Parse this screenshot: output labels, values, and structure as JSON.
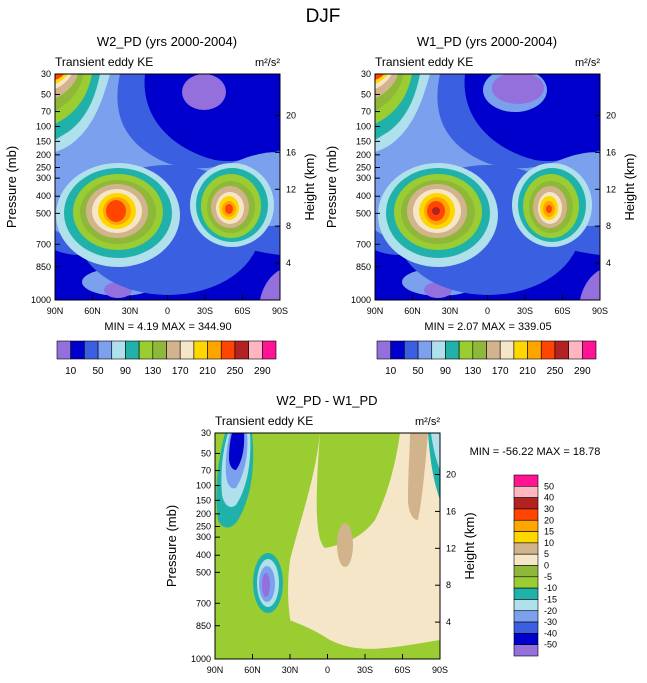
{
  "figure": {
    "title": "DJF"
  },
  "chart_data": [
    {
      "type": "heatmap",
      "title": "W2_PD (yrs 2000-2004)",
      "left_label": "Transient eddy KE",
      "units": "m²/s²",
      "ylabel": "Pressure (mb)",
      "ylabel_right": "Height (km)",
      "xticks": [
        "90N",
        "60N",
        "30N",
        "0",
        "30S",
        "60S",
        "90S"
      ],
      "yticks": [
        "30",
        "50",
        "70",
        "100",
        "150",
        "200",
        "250",
        "300",
        "400",
        "500",
        "700",
        "850",
        "1000"
      ],
      "height_ticks": [
        "20",
        "16",
        "12",
        "8",
        "4"
      ],
      "stats": "MIN =  4.19  MAX = 344.90",
      "min": 4.19,
      "max": 344.9,
      "levels": [
        10,
        30,
        50,
        70,
        90,
        110,
        130,
        150,
        170,
        190,
        210,
        230,
        250,
        270,
        290
      ],
      "colorbar_labels": [
        "10",
        "50",
        "90",
        "130",
        "170",
        "210",
        "250",
        "290"
      ],
      "colorbar_orientation": "horizontal"
    },
    {
      "type": "heatmap",
      "title": "W1_PD (yrs 2000-2004)",
      "left_label": "Transient eddy KE",
      "units": "m²/s²",
      "ylabel": "Pressure (mb)",
      "ylabel_right": "Height (km)",
      "xticks": [
        "90N",
        "60N",
        "30N",
        "0",
        "30S",
        "60S",
        "90S"
      ],
      "yticks": [
        "30",
        "50",
        "70",
        "100",
        "150",
        "200",
        "250",
        "300",
        "400",
        "500",
        "700",
        "850",
        "1000"
      ],
      "height_ticks": [
        "20",
        "16",
        "12",
        "8",
        "4"
      ],
      "stats": "MIN =  2.07  MAX = 339.05",
      "min": 2.07,
      "max": 339.05,
      "levels": [
        10,
        30,
        50,
        70,
        90,
        110,
        130,
        150,
        170,
        190,
        210,
        230,
        250,
        270,
        290
      ],
      "colorbar_labels": [
        "10",
        "50",
        "90",
        "130",
        "170",
        "210",
        "250",
        "290"
      ],
      "colorbar_orientation": "horizontal"
    },
    {
      "type": "heatmap",
      "title": "W2_PD - W1_PD",
      "left_label": "Transient eddy KE",
      "units": "m²/s²",
      "ylabel": "Pressure (mb)",
      "ylabel_right": "Height (km)",
      "xticks": [
        "90N",
        "60N",
        "30N",
        "0",
        "30S",
        "60S",
        "90S"
      ],
      "yticks": [
        "30",
        "50",
        "70",
        "100",
        "150",
        "200",
        "250",
        "300",
        "400",
        "500",
        "700",
        "850",
        "1000"
      ],
      "height_ticks": [
        "20",
        "16",
        "12",
        "8",
        "4"
      ],
      "stats": "MIN = -56.22  MAX =  18.78",
      "min": -56.22,
      "max": 18.78,
      "levels": [
        -50,
        -40,
        -30,
        -20,
        -15,
        -10,
        -5,
        0,
        5,
        10,
        15,
        20,
        30,
        40,
        50
      ],
      "colorbar_labels": [
        "50",
        "40",
        "30",
        "20",
        "15",
        "10",
        "5",
        "0",
        "-5",
        "-10",
        "-15",
        "-20",
        "-30",
        "-40",
        "-50"
      ],
      "colorbar_orientation": "vertical"
    }
  ],
  "colors": {
    "kePalette": [
      "#9370db",
      "#0000cd",
      "#3a5fe0",
      "#7aa0ee",
      "#b0e0ec",
      "#20b2aa",
      "#9acd32",
      "#8fb83a",
      "#d2b48c",
      "#f5e6c8",
      "#ffd700",
      "#ffa500",
      "#ff4500",
      "#b22222",
      "#ffb6c1",
      "#ff1493"
    ],
    "diffPalette": [
      "#ff1493",
      "#ffb6c1",
      "#b22222",
      "#ff4500",
      "#ffa500",
      "#ffd700",
      "#d2b48c",
      "#f5e6c8",
      "#8fb83a",
      "#9acd32",
      "#20b2aa",
      "#b0e0ec",
      "#7aa0ee",
      "#3a5fe0",
      "#0000cd",
      "#9370db"
    ]
  }
}
